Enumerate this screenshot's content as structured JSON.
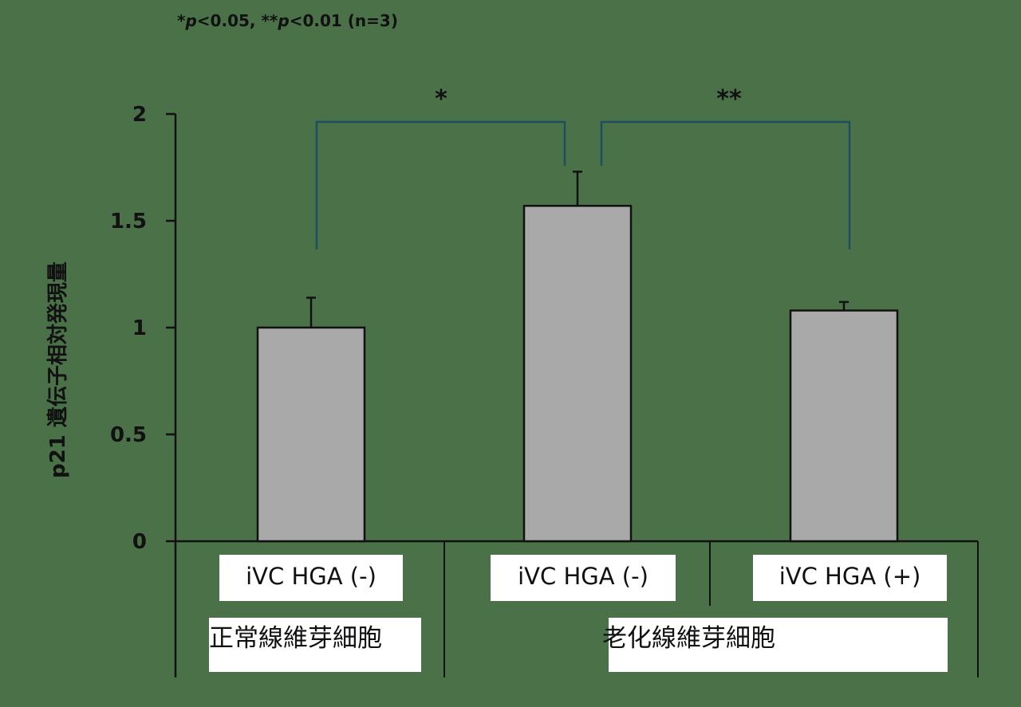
{
  "note": {
    "star1": "*",
    "p1": "p",
    "rest1": "<0.05, **",
    "p2": "p",
    "rest2": "<0.01 (n=3)"
  },
  "y_axis_label": "p21 遺伝子相対発現量",
  "conditions": [
    "iVC HGA (-)",
    "iVC HGA (-)",
    "iVC HGA (+)"
  ],
  "groups": [
    "正常線維芽細胞",
    "老化線維芽細胞"
  ],
  "significance": [
    "*",
    "**"
  ],
  "colors": {
    "background": "#4a7148",
    "bar": "#a9a9a9",
    "bracket": "#1e4f5e",
    "axis": "#111111"
  },
  "chart_data": {
    "type": "bar",
    "categories": [
      "iVC HGA (-) / 正常線維芽細胞",
      "iVC HGA (-) / 老化線維芽細胞",
      "iVC HGA (+) / 老化線維芽細胞"
    ],
    "values": [
      1.0,
      1.57,
      1.08
    ],
    "error": [
      0.14,
      0.16,
      0.04
    ],
    "ylabel": "p21 遺伝子相対発現量",
    "ylim": [
      0,
      2
    ],
    "yticks": [
      "0",
      "0.5",
      "1",
      "1.5",
      "2"
    ],
    "grid": false
  }
}
